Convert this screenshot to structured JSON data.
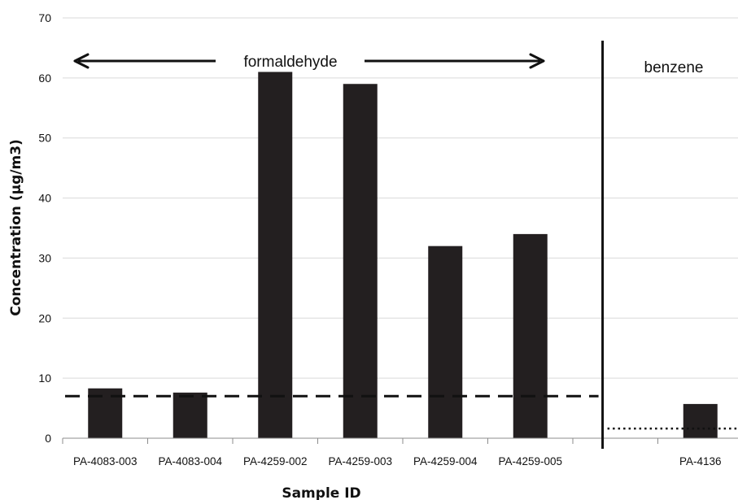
{
  "chart_data": {
    "type": "bar",
    "title": "",
    "xlabel": "Sample ID",
    "ylabel": "Concentration (µg/m3)",
    "ylim": [
      0,
      70
    ],
    "yticks": [
      0,
      10,
      20,
      30,
      40,
      50,
      60,
      70
    ],
    "grid": true,
    "legend": "none",
    "categories": [
      "PA-4083-003",
      "PA-4083-004",
      "PA-4259-002",
      "PA-4259-003",
      "PA-4259-004",
      "PA-4259-005",
      "",
      "PA-4136"
    ],
    "values": [
      8.3,
      7.6,
      61,
      59,
      32,
      34,
      null,
      5.7
    ],
    "bar_color": "#231f20",
    "reference_lines": [
      {
        "style": "dashed",
        "value": 7,
        "applies_to": "formaldehyde"
      },
      {
        "style": "dotted",
        "value": 1.6,
        "applies_to": "benzene"
      }
    ],
    "annotations": {
      "formaldehyde": "formaldehyde",
      "benzene": "benzene"
    }
  }
}
